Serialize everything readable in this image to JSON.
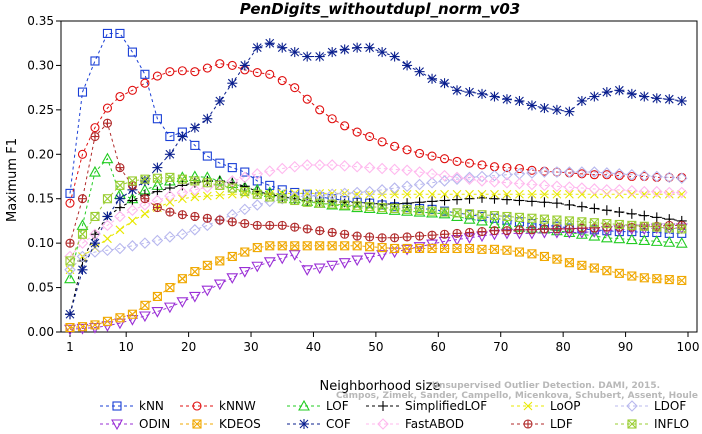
{
  "chart_data": {
    "type": "line",
    "title": "PenDigits_withoutdupl_norm_v03",
    "xlabel": "Neighborhood size",
    "ylabel": "Maximum F1",
    "xlim": [
      1,
      100
    ],
    "ylim": [
      0,
      0.35
    ],
    "x_ticks": [
      1,
      10,
      20,
      30,
      40,
      50,
      60,
      70,
      80,
      90,
      100
    ],
    "y_ticks": [
      "0.00",
      "0.05",
      "0.10",
      "0.15",
      "0.20",
      "0.25",
      "0.30",
      "0.35"
    ],
    "grid": false,
    "legend_position": "bottom",
    "watermark": [
      "Campos, Zimek, Sander, Campello, Micenkova, Schubert, Assent, Houle",
      "Unsupervised Outlier Detection. DAMI, 2015."
    ],
    "x_step": 2,
    "series": [
      {
        "name": "kNN",
        "color": "#1a3fd6",
        "marker": "square",
        "values": [
          0.156,
          0.27,
          0.305,
          0.336,
          0.336,
          0.315,
          0.29,
          0.24,
          0.22,
          0.225,
          0.21,
          0.198,
          0.19,
          0.185,
          0.18,
          0.17,
          0.165,
          0.16,
          0.157,
          0.155,
          0.152,
          0.15,
          0.148,
          0.146,
          0.145,
          0.143,
          0.141,
          0.14,
          0.139,
          0.138,
          0.136,
          0.134,
          0.132,
          0.13,
          0.128,
          0.126,
          0.124,
          0.122,
          0.12,
          0.119,
          0.117,
          0.116,
          0.115,
          0.114,
          0.113,
          0.113,
          0.112,
          0.112,
          0.111,
          0.111
        ]
      },
      {
        "name": "kNNW",
        "color": "#e01010",
        "marker": "circle",
        "values": [
          0.145,
          0.2,
          0.23,
          0.252,
          0.265,
          0.272,
          0.28,
          0.288,
          0.293,
          0.294,
          0.293,
          0.297,
          0.302,
          0.3,
          0.295,
          0.292,
          0.29,
          0.283,
          0.275,
          0.262,
          0.25,
          0.24,
          0.232,
          0.225,
          0.22,
          0.214,
          0.209,
          0.205,
          0.201,
          0.198,
          0.195,
          0.192,
          0.19,
          0.188,
          0.186,
          0.185,
          0.184,
          0.182,
          0.181,
          0.18,
          0.179,
          0.178,
          0.177,
          0.177,
          0.176,
          0.175,
          0.175,
          0.174,
          0.174,
          0.174
        ]
      },
      {
        "name": "LOF",
        "color": "#22cc22",
        "marker": "triangle-up",
        "values": [
          0.06,
          0.12,
          0.18,
          0.195,
          0.155,
          0.15,
          0.16,
          0.165,
          0.17,
          0.174,
          0.175,
          0.174,
          0.17,
          0.167,
          0.163,
          0.16,
          0.157,
          0.153,
          0.15,
          0.147,
          0.145,
          0.143,
          0.142,
          0.14,
          0.139,
          0.138,
          0.137,
          0.136,
          0.135,
          0.134,
          0.133,
          0.13,
          0.127,
          0.125,
          0.122,
          0.12,
          0.118,
          0.117,
          0.116,
          0.114,
          0.112,
          0.11,
          0.108,
          0.106,
          0.105,
          0.104,
          0.103,
          0.102,
          0.101,
          0.1
        ]
      },
      {
        "name": "SimplifiedLOF",
        "color": "#000000",
        "marker": "plus",
        "values": [
          0.02,
          0.08,
          0.11,
          0.13,
          0.14,
          0.148,
          0.154,
          0.158,
          0.162,
          0.165,
          0.168,
          0.17,
          0.17,
          0.168,
          0.164,
          0.158,
          0.155,
          0.152,
          0.15,
          0.148,
          0.147,
          0.147,
          0.146,
          0.146,
          0.145,
          0.144,
          0.144,
          0.145,
          0.146,
          0.147,
          0.148,
          0.149,
          0.15,
          0.151,
          0.15,
          0.149,
          0.148,
          0.147,
          0.146,
          0.145,
          0.143,
          0.141,
          0.139,
          0.137,
          0.135,
          0.133,
          0.131,
          0.129,
          0.127,
          0.125
        ]
      },
      {
        "name": "LoOP",
        "color": "#e8e800",
        "marker": "x",
        "values": [
          0.07,
          0.085,
          0.095,
          0.105,
          0.115,
          0.125,
          0.133,
          0.14,
          0.146,
          0.15,
          0.152,
          0.153,
          0.154,
          0.155,
          0.155,
          0.155,
          0.155,
          0.156,
          0.156,
          0.156,
          0.156,
          0.156,
          0.156,
          0.155,
          0.155,
          0.155,
          0.155,
          0.155,
          0.155,
          0.155,
          0.155,
          0.155,
          0.155,
          0.155,
          0.155,
          0.155,
          0.155,
          0.155,
          0.155,
          0.155,
          0.155,
          0.155,
          0.155,
          0.155,
          0.155,
          0.155,
          0.155,
          0.155,
          0.155,
          0.155
        ]
      },
      {
        "name": "LDOF",
        "color": "#b8b8ee",
        "marker": "diamond",
        "values": [
          0.07,
          0.085,
          0.09,
          0.092,
          0.094,
          0.097,
          0.1,
          0.103,
          0.107,
          0.11,
          0.115,
          0.12,
          0.126,
          0.132,
          0.138,
          0.143,
          0.147,
          0.15,
          0.152,
          0.153,
          0.154,
          0.155,
          0.156,
          0.157,
          0.158,
          0.16,
          0.162,
          0.164,
          0.166,
          0.168,
          0.17,
          0.172,
          0.174,
          0.175,
          0.176,
          0.177,
          0.178,
          0.179,
          0.18,
          0.18,
          0.18,
          0.18,
          0.18,
          0.179,
          0.178,
          0.177,
          0.176,
          0.175,
          0.174,
          0.173
        ]
      },
      {
        "name": "ODIN",
        "color": "#9a2fd6",
        "marker": "triangle-down",
        "values": [
          0.003,
          0.004,
          0.005,
          0.007,
          0.01,
          0.014,
          0.018,
          0.023,
          0.028,
          0.034,
          0.04,
          0.047,
          0.054,
          0.061,
          0.068,
          0.074,
          0.079,
          0.083,
          0.087,
          0.07,
          0.072,
          0.075,
          0.078,
          0.081,
          0.084,
          0.087,
          0.09,
          0.093,
          0.096,
          0.099,
          0.102,
          0.104,
          0.106,
          0.108,
          0.11,
          0.111,
          0.111,
          0.111,
          0.112,
          0.112,
          0.112,
          0.112,
          0.113,
          0.114,
          0.115,
          0.116,
          0.116,
          0.117,
          0.117,
          0.117
        ]
      },
      {
        "name": "KDEOS",
        "color": "#f0a800",
        "marker": "square-x",
        "values": [
          0.005,
          0.006,
          0.008,
          0.012,
          0.016,
          0.02,
          0.03,
          0.04,
          0.05,
          0.06,
          0.068,
          0.075,
          0.08,
          0.085,
          0.09,
          0.095,
          0.097,
          0.097,
          0.097,
          0.097,
          0.097,
          0.097,
          0.097,
          0.097,
          0.096,
          0.095,
          0.094,
          0.094,
          0.094,
          0.094,
          0.094,
          0.094,
          0.094,
          0.093,
          0.093,
          0.092,
          0.09,
          0.088,
          0.085,
          0.082,
          0.078,
          0.075,
          0.072,
          0.069,
          0.066,
          0.063,
          0.061,
          0.06,
          0.059,
          0.058
        ]
      },
      {
        "name": "COF",
        "color": "#0a1f8e",
        "marker": "asterisk",
        "values": [
          0.02,
          0.07,
          0.1,
          0.13,
          0.15,
          0.16,
          0.17,
          0.185,
          0.2,
          0.22,
          0.23,
          0.24,
          0.26,
          0.28,
          0.3,
          0.32,
          0.325,
          0.32,
          0.315,
          0.31,
          0.31,
          0.315,
          0.318,
          0.32,
          0.32,
          0.315,
          0.31,
          0.3,
          0.293,
          0.285,
          0.28,
          0.272,
          0.27,
          0.268,
          0.265,
          0.262,
          0.26,
          0.255,
          0.252,
          0.25,
          0.248,
          0.26,
          0.265,
          0.27,
          0.272,
          0.268,
          0.265,
          0.263,
          0.262,
          0.26
        ]
      },
      {
        "name": "FastABOD",
        "color": "#ffb8ee",
        "marker": "diamond",
        "values": [
          0.085,
          0.1,
          0.11,
          0.12,
          0.13,
          0.137,
          0.143,
          0.148,
          0.153,
          0.157,
          0.16,
          0.163,
          0.166,
          0.17,
          0.174,
          0.178,
          0.181,
          0.184,
          0.186,
          0.188,
          0.188,
          0.188,
          0.187,
          0.186,
          0.185,
          0.184,
          0.183,
          0.182,
          0.18,
          0.178,
          0.176,
          0.174,
          0.172,
          0.17,
          0.169,
          0.168,
          0.167,
          0.166,
          0.165,
          0.164,
          0.163,
          0.162,
          0.161,
          0.16,
          0.16,
          0.159,
          0.158,
          0.158,
          0.157,
          0.157
        ]
      },
      {
        "name": "LDF",
        "color": "#b02a2a",
        "marker": "circle-plus",
        "values": [
          0.1,
          0.15,
          0.22,
          0.235,
          0.185,
          0.165,
          0.15,
          0.14,
          0.135,
          0.132,
          0.13,
          0.128,
          0.126,
          0.124,
          0.122,
          0.12,
          0.12,
          0.12,
          0.118,
          0.116,
          0.114,
          0.112,
          0.11,
          0.108,
          0.107,
          0.106,
          0.106,
          0.107,
          0.108,
          0.109,
          0.11,
          0.111,
          0.112,
          0.113,
          0.114,
          0.114,
          0.115,
          0.115,
          0.116,
          0.116,
          0.116,
          0.117,
          0.117,
          0.118,
          0.118,
          0.118,
          0.119,
          0.119,
          0.12,
          0.12
        ]
      },
      {
        "name": "INFLO",
        "color": "#9acd32",
        "marker": "square-x",
        "values": [
          0.08,
          0.11,
          0.13,
          0.15,
          0.165,
          0.17,
          0.172,
          0.173,
          0.174,
          0.172,
          0.17,
          0.168,
          0.165,
          0.162,
          0.158,
          0.155,
          0.152,
          0.15,
          0.148,
          0.146,
          0.145,
          0.144,
          0.143,
          0.142,
          0.141,
          0.14,
          0.139,
          0.138,
          0.137,
          0.136,
          0.135,
          0.134,
          0.133,
          0.132,
          0.131,
          0.13,
          0.129,
          0.128,
          0.127,
          0.126,
          0.125,
          0.124,
          0.123,
          0.122,
          0.121,
          0.12,
          0.119,
          0.118,
          0.117,
          0.116
        ]
      }
    ]
  }
}
